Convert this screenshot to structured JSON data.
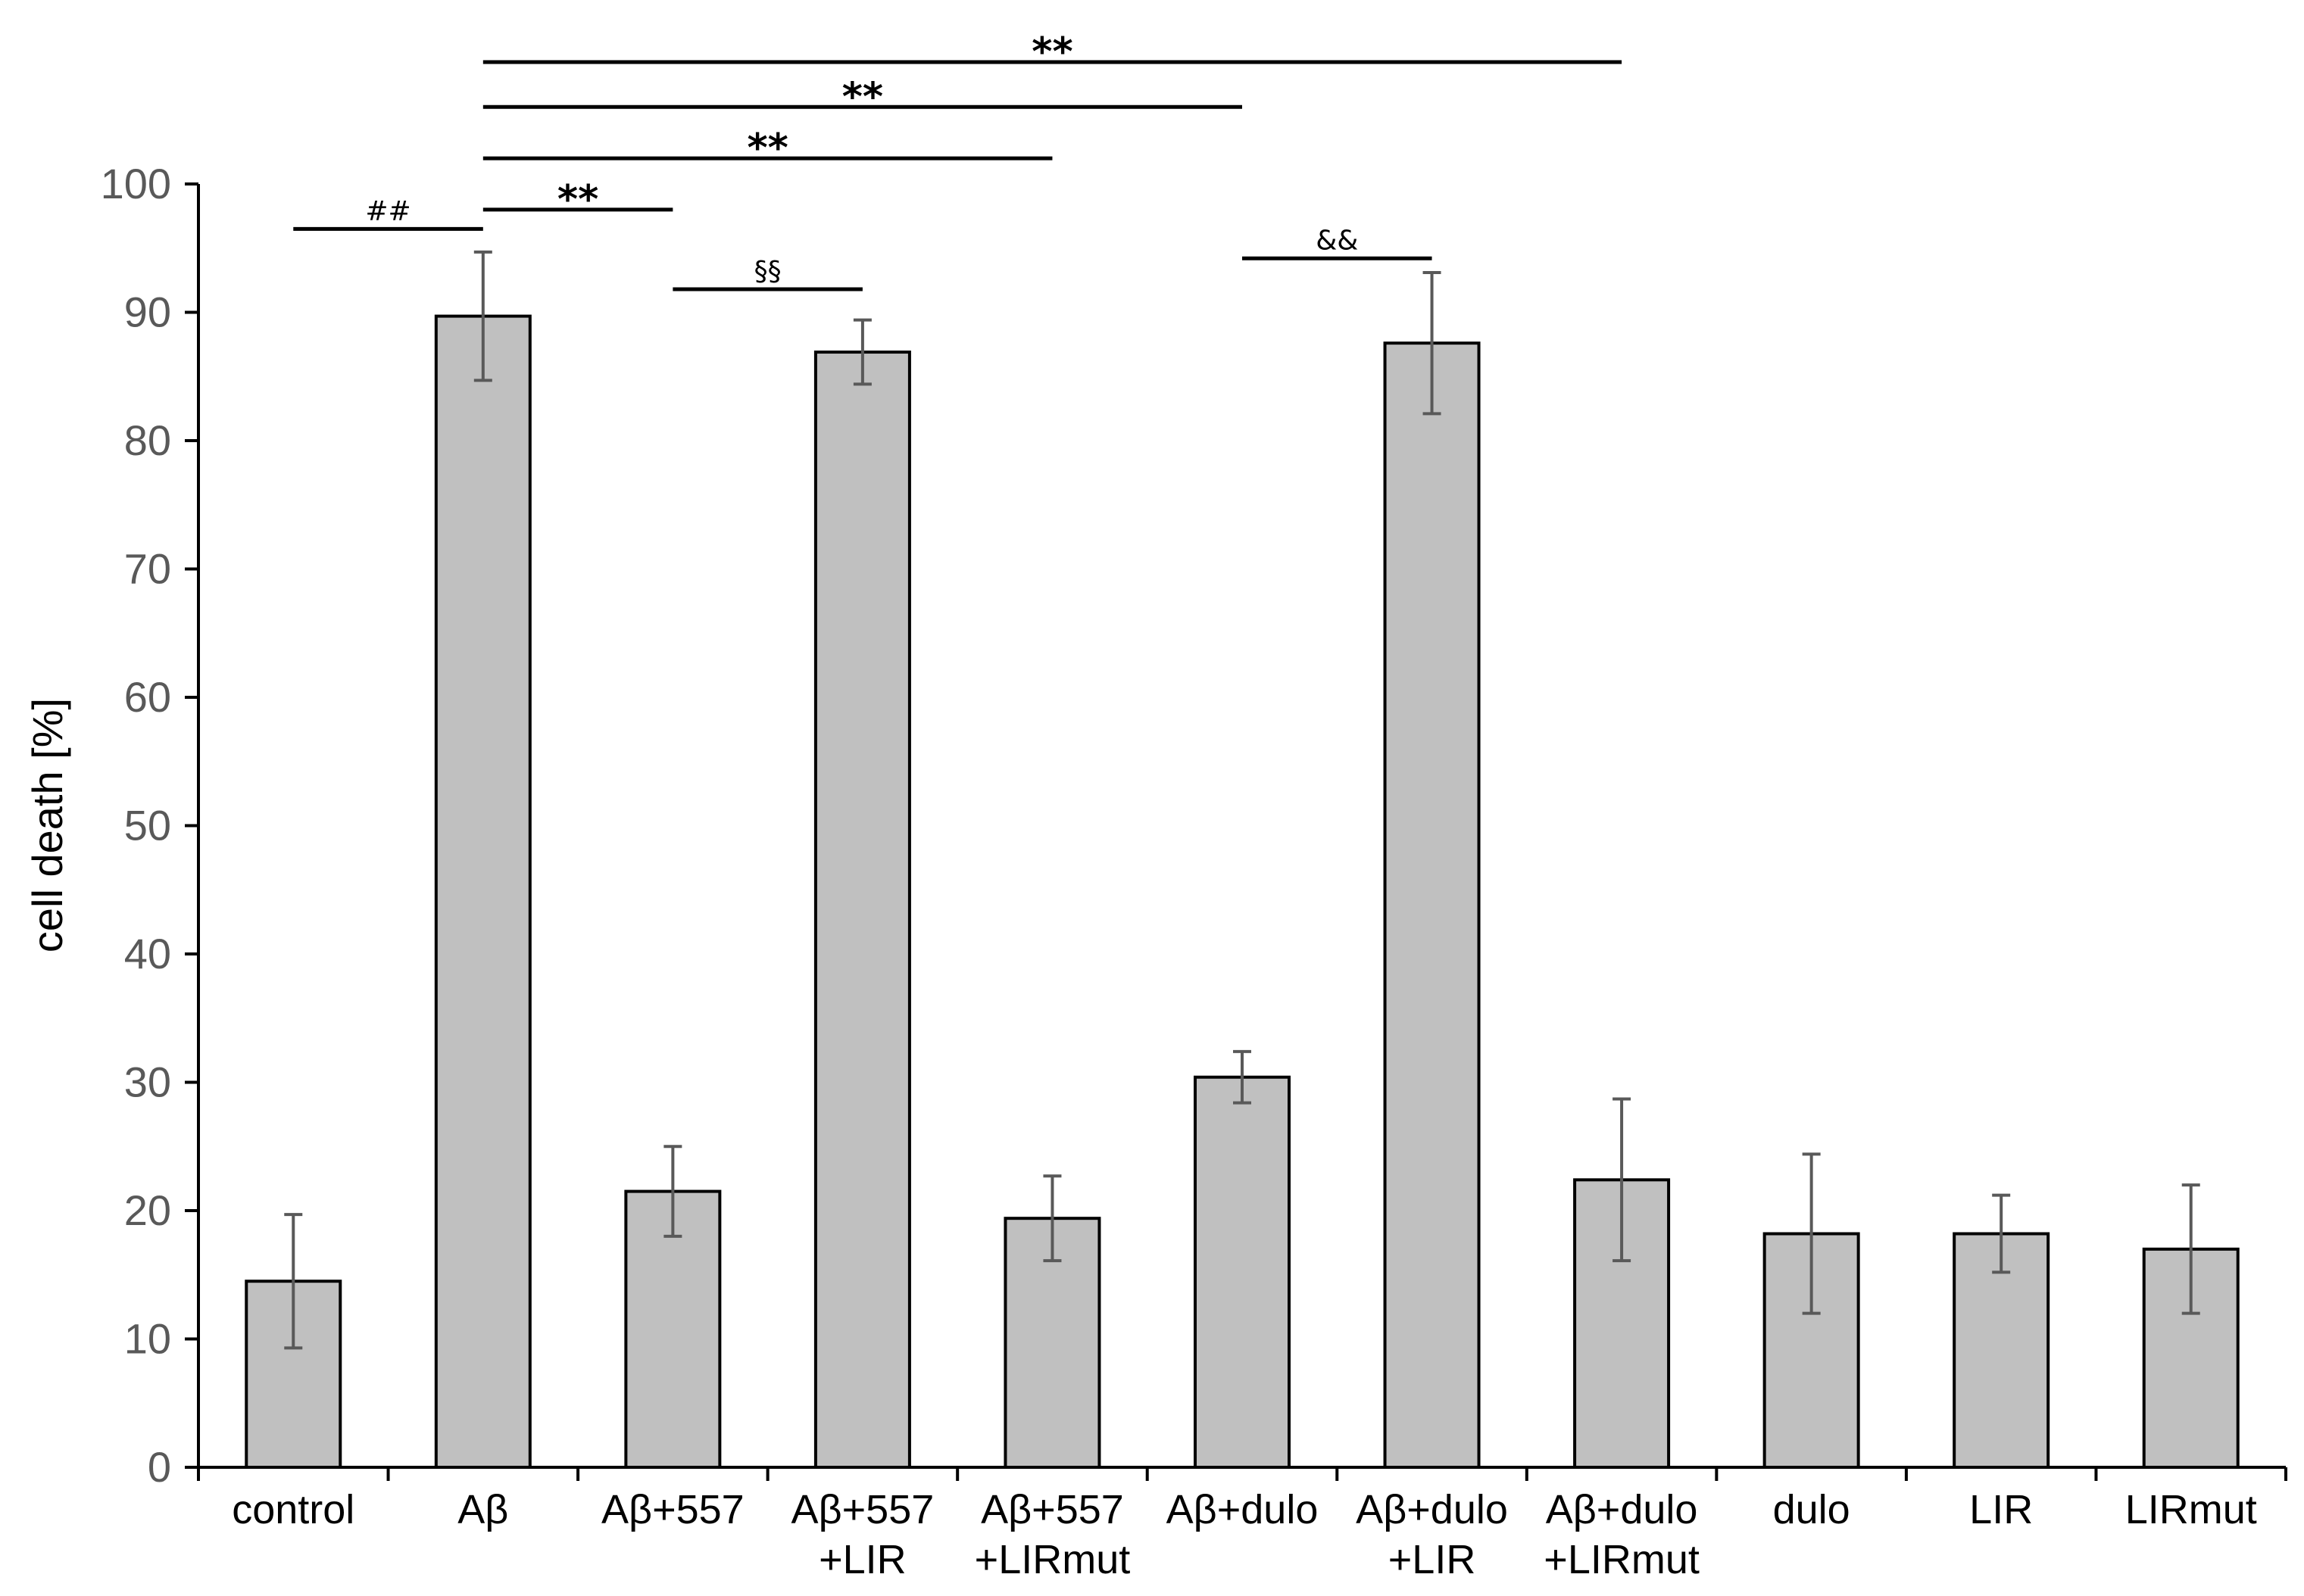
{
  "chart_data": {
    "type": "bar",
    "ylabel": "cell death [%]",
    "xlabel": "",
    "ylim": [
      0,
      100
    ],
    "yticks": [
      0,
      10,
      20,
      30,
      40,
      50,
      60,
      70,
      80,
      90,
      100
    ],
    "grid": false,
    "legend": "none",
    "bar_color": "#c0c0c0",
    "bar_edge_color": "#000000",
    "error_color": "#595959",
    "categories": [
      [
        "control"
      ],
      [
        "Aβ"
      ],
      [
        "Aβ+557"
      ],
      [
        "Aβ+557",
        "+LIR"
      ],
      [
        "Aβ+557",
        "+LIRmut"
      ],
      [
        "Aβ+dulo"
      ],
      [
        "Aβ+dulo",
        "+LIR"
      ],
      [
        "Aβ+dulo",
        "+LIRmut"
      ],
      [
        "dulo"
      ],
      [
        "LIR"
      ],
      [
        "LIRmut"
      ]
    ],
    "values": [
      14.5,
      89.7,
      21.5,
      86.9,
      19.4,
      30.4,
      87.6,
      22.4,
      18.2,
      18.2,
      17.0
    ],
    "errors": [
      5.2,
      5.0,
      3.5,
      2.5,
      3.3,
      2.0,
      5.5,
      6.3,
      6.2,
      3.0,
      5.0
    ],
    "significance": [
      {
        "from": 0,
        "to": 1,
        "y": 96.5,
        "label": "##"
      },
      {
        "from": 1,
        "to": 2,
        "y": 98.0,
        "label": "**"
      },
      {
        "from": 2,
        "to": 3,
        "y": 91.8,
        "label": "§§"
      },
      {
        "from": 5,
        "to": 6,
        "y": 94.2,
        "label": "&&"
      },
      {
        "from": 1,
        "to": 4,
        "y": 102.0,
        "label": "**"
      },
      {
        "from": 1,
        "to": 5,
        "y": 106.0,
        "label": "**"
      },
      {
        "from": 1,
        "to": 7,
        "y": 109.5,
        "label": "**"
      }
    ]
  }
}
